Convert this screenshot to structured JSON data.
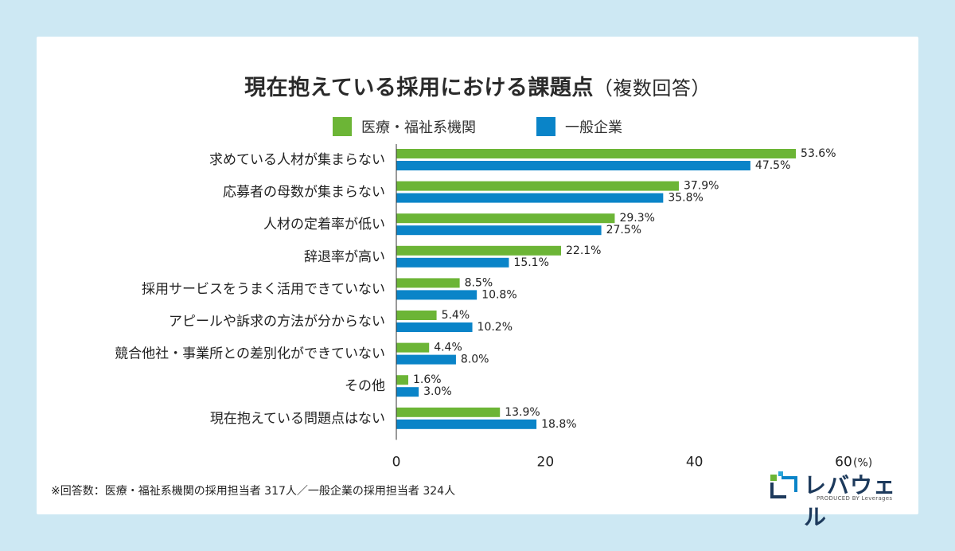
{
  "title": "現在抱えている採用における課題点",
  "title_sub": "（複数回答）",
  "footnote": "※回答数：医療・福祉系機関の採用担当者 317人／一般企業の採用担当者 324人",
  "logo": {
    "name": "レバウェル",
    "sub": "PRODUCED BY Leverages"
  },
  "colors": {
    "medical": "#6cb536",
    "general": "#0a84c8",
    "background": "#cde8f3"
  },
  "chart_data": {
    "type": "bar",
    "orientation": "horizontal",
    "categories": [
      "求めている人材が集まらない",
      "応募者の母数が集まらない",
      "人材の定着率が低い",
      "辞退率が高い",
      "採用サービスをうまく活用できていない",
      "アピールや訴求の方法が分からない",
      "競合他社・事業所との差別化ができていない",
      "その他",
      "現在抱えている問題点はない"
    ],
    "series": [
      {
        "name": "医療・福祉系機関",
        "color": "#6cb536",
        "values": [
          53.6,
          37.9,
          29.3,
          22.1,
          8.5,
          5.4,
          4.4,
          1.6,
          13.9
        ]
      },
      {
        "name": "一般企業",
        "color": "#0a84c8",
        "values": [
          47.5,
          35.8,
          27.5,
          15.1,
          10.8,
          10.2,
          8.0,
          3.0,
          18.8
        ]
      }
    ],
    "xlim": [
      0,
      60
    ],
    "xticks": [
      "0",
      "20",
      "40",
      "60"
    ],
    "xunit": "(%)",
    "legend_position": "top-center",
    "grid": false
  }
}
